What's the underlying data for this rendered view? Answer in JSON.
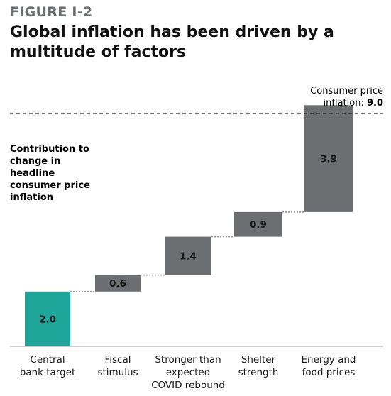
{
  "figure_label": "FIGURE I-2",
  "title": "Global inflation has been driven by a multitude of factors",
  "chart_data": {
    "type": "waterfall",
    "ylabel": "Contribution to change in headline consumer price inflation",
    "categories": [
      "Central bank target",
      "Fiscal stimulus",
      "Stronger than expected COVID rebound",
      "Shelter strength",
      "Energy and food prices"
    ],
    "category_lines": [
      [
        "Central",
        "bank target"
      ],
      [
        "Fiscal",
        "stimulus"
      ],
      [
        "Stronger than",
        "expected",
        "COVID rebound"
      ],
      [
        "Shelter",
        "strength"
      ],
      [
        "Energy and",
        "food prices"
      ]
    ],
    "values": [
      2.0,
      0.6,
      1.4,
      0.9,
      3.9
    ],
    "value_labels": [
      "2.0",
      "0.6",
      "1.4",
      "0.9",
      "3.9"
    ],
    "total": {
      "label_line1": "Consumer price",
      "label_line2": "inflation: ",
      "value": "9.0"
    },
    "colors": {
      "base": "#1fa49a",
      "increment": "#6d6e71",
      "label_on_base": "#1a1a1a",
      "label_on_bar": "#ffffff"
    }
  }
}
